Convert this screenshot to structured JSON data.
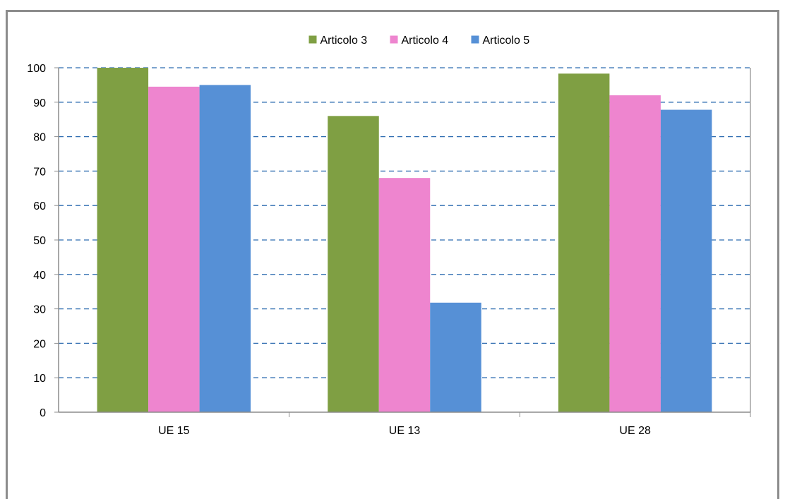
{
  "chart_data": {
    "type": "bar",
    "title": "",
    "xlabel": "",
    "ylabel": "",
    "categories": [
      "UE 15",
      "UE 13",
      "UE 28"
    ],
    "series": [
      {
        "name": "Articolo 3",
        "values": [
          100,
          86,
          98.3
        ],
        "color": "#7f9f43"
      },
      {
        "name": "Articolo 4",
        "values": [
          94.5,
          68,
          92
        ],
        "color": "#ee85cf"
      },
      {
        "name": "Articolo 5",
        "values": [
          95,
          31.8,
          87.8
        ],
        "color": "#5690d6"
      }
    ],
    "ylim": [
      0,
      100
    ],
    "yticks": [
      "0",
      "10",
      "20",
      "30",
      "40",
      "50",
      "60",
      "70",
      "80",
      "90",
      "100"
    ],
    "grid": true,
    "grid_style": "dashed",
    "grid_color": "#2e6cb0",
    "legend_position": "top"
  }
}
